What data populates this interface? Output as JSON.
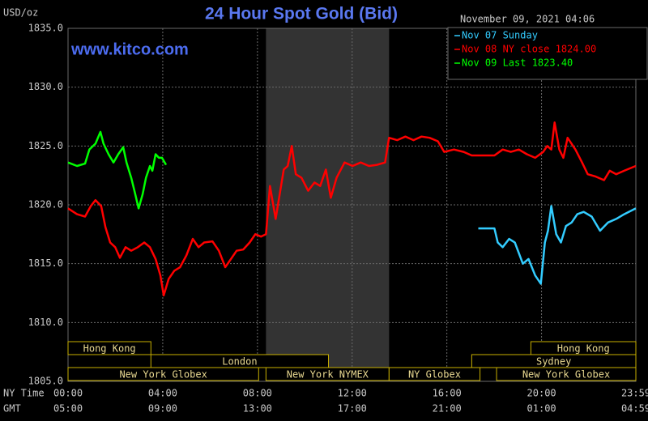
{
  "chart_data": {
    "type": "line",
    "title": "24 Hour Spot Gold (Bid)",
    "timestamp": "November 09, 2021 04:06",
    "watermark": "www.kitco.com",
    "y_label": "USD/oz",
    "x_row_labels": [
      "NY Time",
      "GMT"
    ],
    "xlim": [
      0,
      23.983
    ],
    "ylim": [
      1805,
      1835
    ],
    "xticks": [
      {
        "value": 0,
        "label": "00:00"
      },
      {
        "value": 4,
        "label": "04:00"
      },
      {
        "value": 8,
        "label": "08:00"
      },
      {
        "value": 12,
        "label": "12:00"
      },
      {
        "value": 16,
        "label": "16:00"
      },
      {
        "value": 20,
        "label": "20:00"
      },
      {
        "value": 23.983,
        "label": "23:59"
      }
    ],
    "xticks_gmt": [
      {
        "value": 0,
        "label": "05:00"
      },
      {
        "value": 4,
        "label": "09:00"
      },
      {
        "value": 8,
        "label": "13:00"
      },
      {
        "value": 12,
        "label": "17:00"
      },
      {
        "value": 16,
        "label": "21:00"
      },
      {
        "value": 20,
        "label": "01:00"
      },
      {
        "value": 23.983,
        "label": "04:59"
      }
    ],
    "yticks": [
      {
        "value": 1805,
        "label": "1805.0"
      },
      {
        "value": 1810,
        "label": "1810.0"
      },
      {
        "value": 1815,
        "label": "1815.0"
      },
      {
        "value": 1820,
        "label": "1820.0"
      },
      {
        "value": 1825,
        "label": "1825.0"
      },
      {
        "value": 1830,
        "label": "1830.0"
      },
      {
        "value": 1835,
        "label": "1835.0"
      }
    ],
    "grid": true,
    "shaded_range": [
      8.36,
      13.56
    ],
    "session_rows": [
      [
        {
          "label": "Hong Kong",
          "start": 0,
          "end": 3.5
        },
        {
          "label": "Hong Kong",
          "start": 19.55,
          "end": 23.983
        }
      ],
      [
        {
          "label": "London",
          "start": 3.5,
          "end": 11
        },
        {
          "label": "Sydney",
          "start": 17.05,
          "end": 23.983
        }
      ],
      [
        {
          "label": "New York Globex",
          "start": 0,
          "end": 8.05
        },
        {
          "label": "New York NYMEX",
          "start": 8.36,
          "end": 13.56
        },
        {
          "label": "NY Globex",
          "start": 13.56,
          "end": 17.4
        },
        {
          "label": "New York Globex",
          "start": 18.1,
          "end": 23.983
        }
      ]
    ],
    "series": [
      {
        "name": "Nov 07 Sunday",
        "color": "#33ccff",
        "x": [
          17.33,
          18.01,
          18.15,
          18.36,
          18.63,
          18.87,
          19.21,
          19.45,
          19.73,
          19.97,
          20.14,
          20.27,
          20.41,
          20.62,
          20.82,
          21.03,
          21.27,
          21.51,
          21.78,
          22.12,
          22.47,
          22.81,
          23.15,
          23.49,
          23.98
        ],
        "values": [
          1818.0,
          1818.0,
          1816.8,
          1816.4,
          1817.1,
          1816.8,
          1815.0,
          1815.4,
          1814.0,
          1813.3,
          1816.8,
          1817.8,
          1819.9,
          1817.5,
          1816.8,
          1818.2,
          1818.5,
          1819.2,
          1819.4,
          1819.0,
          1817.8,
          1818.5,
          1818.8,
          1819.2,
          1819.7
        ]
      },
      {
        "name": "Nov 08 NY close 1824.00",
        "color": "#ff0000",
        "x": [
          0,
          0.38,
          0.72,
          0.96,
          1.16,
          1.4,
          1.58,
          1.78,
          1.99,
          2.19,
          2.43,
          2.67,
          2.95,
          3.22,
          3.46,
          3.7,
          3.9,
          4.04,
          4.25,
          4.49,
          4.73,
          5.0,
          5.27,
          5.51,
          5.75,
          6.1,
          6.37,
          6.64,
          6.88,
          7.12,
          7.4,
          7.67,
          7.91,
          8.15,
          8.36,
          8.53,
          8.77,
          8.94,
          9.11,
          9.28,
          9.45,
          9.62,
          9.86,
          10.14,
          10.41,
          10.65,
          10.89,
          11.1,
          11.34,
          11.68,
          12.02,
          12.36,
          12.71,
          13.05,
          13.39,
          13.56,
          13.9,
          14.25,
          14.59,
          14.93,
          15.27,
          15.62,
          15.89,
          16.3,
          16.71,
          17.05,
          17.5,
          18.01,
          18.36,
          18.7,
          19.04,
          19.38,
          19.73,
          20.07,
          20.24,
          20.41,
          20.55,
          20.75,
          20.92,
          21.1,
          21.43,
          21.71,
          21.95,
          22.29,
          22.64,
          22.88,
          23.15,
          23.49,
          23.98
        ],
        "values": [
          1819.7,
          1819.2,
          1819.0,
          1819.9,
          1820.4,
          1819.9,
          1818.1,
          1816.8,
          1816.4,
          1815.5,
          1816.4,
          1816.1,
          1816.4,
          1816.8,
          1816.4,
          1815.4,
          1814.0,
          1812.3,
          1813.7,
          1814.4,
          1814.7,
          1815.7,
          1817.1,
          1816.4,
          1816.8,
          1816.9,
          1816.1,
          1814.7,
          1815.4,
          1816.1,
          1816.2,
          1816.8,
          1817.5,
          1817.3,
          1817.5,
          1821.6,
          1818.8,
          1820.9,
          1823.0,
          1823.3,
          1825.0,
          1822.6,
          1822.3,
          1821.2,
          1821.9,
          1821.6,
          1823.0,
          1820.6,
          1822.3,
          1823.6,
          1823.3,
          1823.6,
          1823.3,
          1823.4,
          1823.6,
          1825.7,
          1825.5,
          1825.8,
          1825.5,
          1825.8,
          1825.7,
          1825.4,
          1824.5,
          1824.7,
          1824.5,
          1824.2,
          1824.2,
          1824.2,
          1824.7,
          1824.5,
          1824.7,
          1824.3,
          1824.0,
          1824.5,
          1825.0,
          1824.7,
          1827.0,
          1824.7,
          1824.0,
          1825.7,
          1824.7,
          1823.6,
          1822.6,
          1822.4,
          1822.1,
          1822.9,
          1822.6,
          1822.9,
          1823.3
        ]
      },
      {
        "name": "Nov 09 Last 1823.40",
        "color": "#00ff00",
        "x": [
          0,
          0.38,
          0.72,
          0.9,
          1.16,
          1.37,
          1.5,
          1.71,
          1.92,
          2.12,
          2.33,
          2.47,
          2.67,
          2.84,
          2.98,
          3.15,
          3.29,
          3.46,
          3.56,
          3.7,
          3.84,
          3.97,
          4.14
        ],
        "values": [
          1823.6,
          1823.3,
          1823.5,
          1824.7,
          1825.2,
          1826.2,
          1825.2,
          1824.3,
          1823.6,
          1824.3,
          1824.9,
          1823.6,
          1822.3,
          1820.9,
          1819.7,
          1820.9,
          1822.3,
          1823.3,
          1822.9,
          1824.3,
          1824.0,
          1824.0,
          1823.4
        ]
      }
    ]
  }
}
